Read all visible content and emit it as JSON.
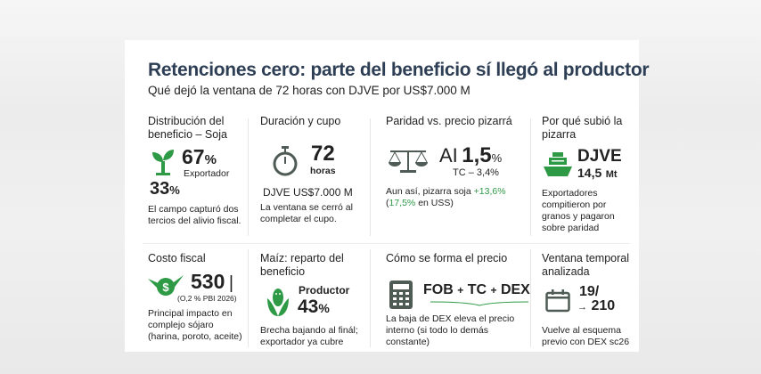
{
  "title": "Retenciones cero: parte del beneficio sí llegó al productor",
  "subtitle": "Qué dejó la ventana de 72 horas con DJVE por US$7.000 M",
  "colors": {
    "title": "#2e3f55",
    "green": "#2e9a46",
    "icon_gray": "#4f5b55"
  },
  "cards": {
    "distribucion": {
      "heading": "Distribución del beneficio – Soja",
      "icon": "sprout-icon",
      "value": "67",
      "unit": "%",
      "label": "Exportador",
      "value2": "33",
      "unit2": "%",
      "text": "El campo capturó dos tercios del alivio fiscal."
    },
    "duracion": {
      "heading": "Duración y cupo",
      "icon": "stopwatch-icon",
      "value": "72",
      "label": "horas",
      "amount": "DJVE US$7.000 M",
      "text": "La ventana se cerró al completar el cupo."
    },
    "paridad": {
      "heading": "Paridad vs. precio pizarrá",
      "icon": "scale-icon",
      "prefix": "AI",
      "value": "1,5",
      "unit": "%",
      "tc": "TC – 3,4%",
      "text_a": "Aun así, pizarra soja ",
      "text_b": "+13,6%",
      "text_c": "(",
      "text_d": "17,5%",
      "text_e": " en USS)"
    },
    "porque": {
      "heading": "Por qué subió la pizarra",
      "icon": "ship-icon",
      "value": "DJVE",
      "value2": "14,5",
      "unit2": "Mt",
      "text": "Exportadores compitieron por granos y pagaron sobre paridad"
    },
    "costo": {
      "heading": "Costo fiscal",
      "icon": "winged-money-icon",
      "value": "530",
      "mark": "|",
      "note": "(O,2 % PBI 2026)",
      "text": "Principal impacto en complejo sójaro (harina, poroto, aceite)"
    },
    "maiz": {
      "heading": "Maíz: reparto del beneficio",
      "icon": "corn-icon",
      "label": "Productor",
      "value": "43",
      "unit": "%",
      "text": "Brecha bajando al finál; exportador ya cubre"
    },
    "forma": {
      "heading": "Cómo se forma el precio",
      "icon": "calculator-icon",
      "f1": "FOB",
      "p1": "+",
      "f2": "TC",
      "p2": "+",
      "f3": "DEX",
      "text": "La baja de DEX eleva el precio interno (si todo lo demás constante)"
    },
    "ventana": {
      "heading": "Ventana temporal analizada",
      "icon": "calendar-icon",
      "v1": "19/",
      "arrow": "→",
      "v2": "210",
      "text": "Vuelve al esquema previo con DEX sc26"
    }
  }
}
